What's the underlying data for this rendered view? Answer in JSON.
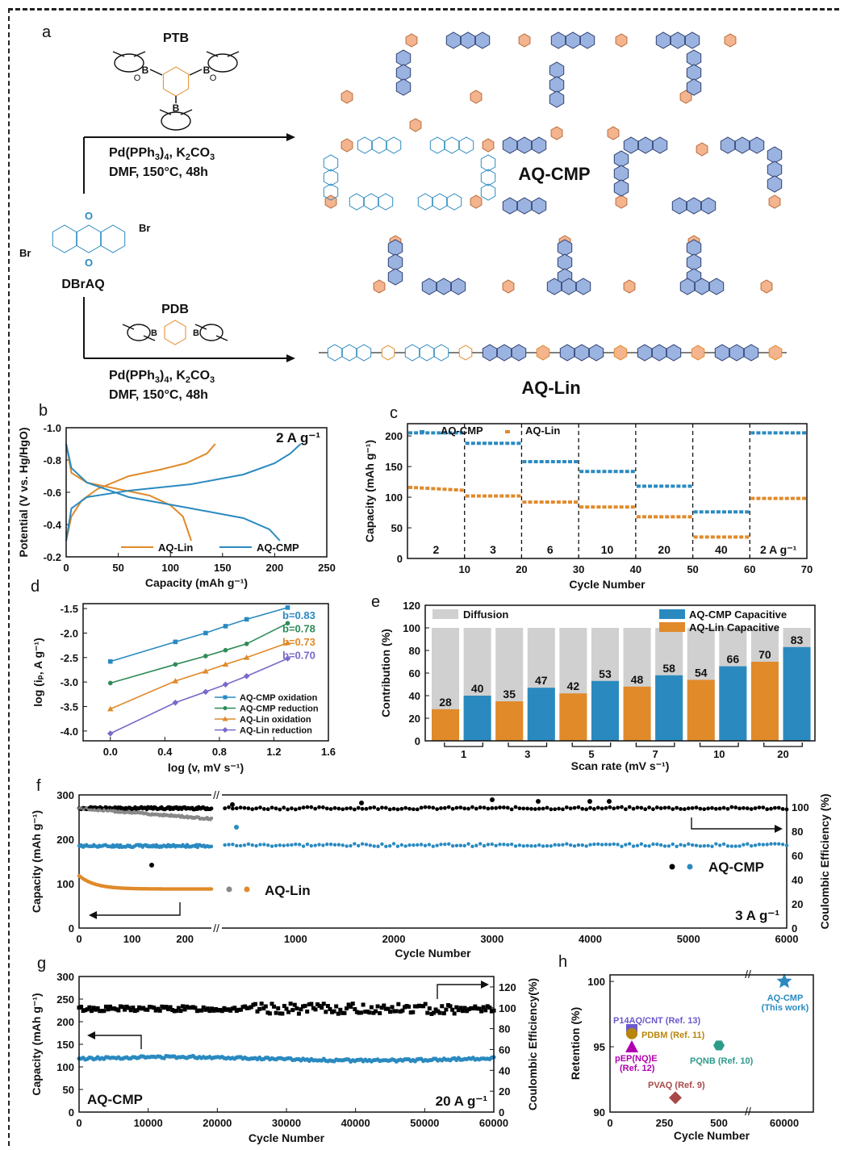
{
  "colors": {
    "cmp": "#2a8ac0",
    "lin": "#e08a2a",
    "green": "#2e8b57",
    "purple": "#7b68c8",
    "grey": "#888888",
    "black": "#000000",
    "hex": "#9bb3e0",
    "hex_dark": "#2c3e70",
    "phen": "#f3b48e",
    "diffusion": "#d0d0d0"
  },
  "panel_a": {
    "label": "a",
    "reagent_top": "PTB",
    "reagent_bottom": "PDB",
    "start": "DBrAQ",
    "br": "Br",
    "cond_top_1": "Pd(PPh",
    "cond_top_sub": "3",
    "cond_top_2": ")",
    "cond_top_sub2": "4",
    "cond_top_3": ", K",
    "cond_top_sub3": "2",
    "cond_top_4": "CO",
    "cond_top_sub4": "3",
    "cond_top_line2": "DMF, 150°C, 48h",
    "product_top": "AQ-CMP",
    "product_bottom": "AQ-Lin",
    "atom_B": "B",
    "atom_O": "O"
  },
  "panels": {
    "b": "b",
    "c": "c",
    "d": "d",
    "e": "e",
    "f": "f",
    "g": "g",
    "h": "h"
  },
  "chart_data": [
    {
      "panel": "b",
      "type": "line",
      "annotation": "2 A g⁻¹",
      "xlabel": "Capacity (mAh g⁻¹)",
      "ylabel": "Potential (V vs. Hg/HgO)",
      "xlim": [
        0,
        250
      ],
      "ylim": [
        -1.0,
        -0.2
      ],
      "xticks": [
        "0",
        "50",
        "100",
        "150",
        "200",
        "250"
      ],
      "yticks": [
        "-1.0",
        "-0.8",
        "-0.6",
        "-0.4",
        "-0.2"
      ],
      "series": [
        {
          "name": "AQ-Lin",
          "color": "#e08a2a",
          "charge": [
            [
              0,
              -0.3
            ],
            [
              5,
              -0.45
            ],
            [
              15,
              -0.55
            ],
            [
              30,
              -0.62
            ],
            [
              60,
              -0.7
            ],
            [
              90,
              -0.74
            ],
            [
              115,
              -0.78
            ],
            [
              135,
              -0.84
            ],
            [
              143,
              -0.9
            ]
          ],
          "discharge": [
            [
              0,
              -0.9
            ],
            [
              5,
              -0.72
            ],
            [
              20,
              -0.66
            ],
            [
              50,
              -0.62
            ],
            [
              80,
              -0.58
            ],
            [
              100,
              -0.52
            ],
            [
              112,
              -0.45
            ],
            [
              120,
              -0.3
            ]
          ]
        },
        {
          "name": "AQ-CMP",
          "color": "#2a8ac0",
          "charge": [
            [
              0,
              -0.3
            ],
            [
              5,
              -0.5
            ],
            [
              20,
              -0.57
            ],
            [
              60,
              -0.61
            ],
            [
              120,
              -0.65
            ],
            [
              170,
              -0.71
            ],
            [
              200,
              -0.78
            ],
            [
              215,
              -0.84
            ],
            [
              225,
              -0.9
            ]
          ],
          "discharge": [
            [
              0,
              -0.9
            ],
            [
              5,
              -0.75
            ],
            [
              20,
              -0.66
            ],
            [
              60,
              -0.57
            ],
            [
              120,
              -0.5
            ],
            [
              170,
              -0.44
            ],
            [
              195,
              -0.37
            ],
            [
              205,
              -0.3
            ]
          ]
        }
      ]
    },
    {
      "panel": "c",
      "type": "scatter",
      "xlabel": "Cycle Number",
      "ylabel": "Capacity (mAh g⁻¹)",
      "xlim": [
        0,
        70
      ],
      "ylim": [
        0,
        220
      ],
      "xticks": [
        "10",
        "20",
        "30",
        "40",
        "50",
        "60",
        "70"
      ],
      "yticks": [
        "0",
        "50",
        "100",
        "150",
        "200"
      ],
      "rates": [
        "2",
        "3",
        "6",
        "10",
        "20",
        "40",
        "2 A g⁻¹"
      ],
      "series": [
        {
          "name": "AQ-CMP",
          "color": "#2a8ac0",
          "segments": [
            205,
            188,
            158,
            142,
            118,
            76,
            205
          ]
        },
        {
          "name": "AQ-Lin",
          "color": "#e08a2a",
          "segments": [
            112,
            102,
            92,
            84,
            68,
            35,
            98
          ]
        }
      ]
    },
    {
      "panel": "d",
      "type": "line",
      "xlabel": "log (v, mV s⁻¹)",
      "ylabel": "log (iₚ, A g⁻¹)",
      "xlim": [
        -0.2,
        1.6
      ],
      "ylim": [
        -4.2,
        -1.4
      ],
      "xticks": [
        "0.0",
        "0.4",
        "0.8",
        "1.2",
        "1.6"
      ],
      "yticks": [
        "-1.5",
        "-2.0",
        "-2.5",
        "-3.0",
        "-3.5",
        "-4.0"
      ],
      "x": [
        0.0,
        0.477,
        0.699,
        0.845,
        1.0,
        1.301
      ],
      "series": [
        {
          "name": "AQ-CMP oxidation",
          "b": "b=0.83",
          "color": "#2a8ac0",
          "marker": "square",
          "y": [
            -2.58,
            -2.18,
            -2.0,
            -1.86,
            -1.72,
            -1.48
          ]
        },
        {
          "name": "AQ-CMP reduction",
          "b": "b=0.78",
          "color": "#2e8b57",
          "marker": "circle",
          "y": [
            -3.02,
            -2.64,
            -2.47,
            -2.35,
            -2.22,
            -1.8
          ]
        },
        {
          "name": "AQ-Lin oxidation",
          "b": "b=0.73",
          "color": "#e08a2a",
          "marker": "triangle",
          "y": [
            -3.55,
            -2.98,
            -2.78,
            -2.64,
            -2.5,
            -2.2
          ]
        },
        {
          "name": "AQ-Lin reduction",
          "b": "b=0.70",
          "color": "#7b68c8",
          "marker": "diamond",
          "y": [
            -4.05,
            -3.42,
            -3.2,
            -3.05,
            -2.88,
            -2.52
          ]
        }
      ]
    },
    {
      "panel": "e",
      "type": "bar",
      "xlabel": "Scan rate (mV s⁻¹)",
      "ylabel": "Contribution (%)",
      "ylim": [
        0,
        120
      ],
      "yticks": [
        "0",
        "20",
        "40",
        "60",
        "80",
        "100",
        "120"
      ],
      "categories": [
        "1",
        "3",
        "5",
        "7",
        "10",
        "20"
      ],
      "series": [
        {
          "name": "AQ-Lin Capacitive",
          "color": "#e08a2a",
          "values": [
            28,
            35,
            42,
            48,
            54,
            70
          ]
        },
        {
          "name": "AQ-CMP Capacitive",
          "color": "#2a8ac0",
          "values": [
            40,
            47,
            53,
            58,
            66,
            83
          ]
        },
        {
          "name": "Diffusion",
          "color": "#d0d0d0",
          "values": [
            100,
            100,
            100,
            100,
            100,
            100
          ]
        }
      ]
    },
    {
      "panel": "f",
      "type": "scatter",
      "annotation": "3 A g⁻¹",
      "xlabel": "Cycle Number",
      "ylabel": "Capacity (mAh g⁻¹)",
      "y2label": "Coulombic Efficiency (%)",
      "ylim": [
        0,
        300
      ],
      "y2lim": [
        0,
        110
      ],
      "xticks_left": [
        "0",
        "100",
        "200"
      ],
      "xticks_right": [
        "1000",
        "2000",
        "3000",
        "4000",
        "5000",
        "6000"
      ],
      "yticks": [
        "0",
        "100",
        "200",
        "300"
      ],
      "y2ticks": [
        "0",
        "20",
        "40",
        "60",
        "80",
        "100"
      ],
      "series": [
        {
          "name": "AQ-CMP",
          "color": "#2a8ac0",
          "capacity": 185
        },
        {
          "name": "AQ-Lin",
          "color": "#e08a2a",
          "capacity_start": 118,
          "capacity_end": 88
        }
      ]
    },
    {
      "panel": "g",
      "type": "scatter",
      "annotation": "20 A g⁻¹",
      "label": "AQ-CMP",
      "xlabel": "Cycle Number",
      "ylabel": "Capacity (mAh g⁻¹)",
      "y2label": "Coulombic Efficiency(%)",
      "xlim": [
        0,
        60000
      ],
      "ylim": [
        0,
        300
      ],
      "y2lim": [
        0,
        130
      ],
      "xticks": [
        "0",
        "10000",
        "20000",
        "30000",
        "40000",
        "50000",
        "60000"
      ],
      "yticks": [
        "0",
        "50",
        "100",
        "150",
        "200",
        "250",
        "300"
      ],
      "y2ticks": [
        "0",
        "20",
        "40",
        "60",
        "80",
        "100",
        "120"
      ],
      "series": [
        {
          "name": "AQ-CMP",
          "color": "#2a8ac0",
          "capacity": 118
        },
        {
          "name": "Coulombic efficiency",
          "color": "#000000",
          "value": 99
        }
      ]
    },
    {
      "panel": "h",
      "type": "scatter",
      "xlabel": "Cycle Number",
      "ylabel": "Retention (%)",
      "ylim": [
        90,
        100.5
      ],
      "yticks": [
        "90",
        "95",
        "100"
      ],
      "xticks": [
        "0",
        "250",
        "500",
        "60000"
      ],
      "points": [
        {
          "name": "AQ-CMP",
          "sub": "(This work)",
          "x": 60000,
          "y": 100,
          "color": "#2a8ac0",
          "marker": "star"
        },
        {
          "name": "P14AQ/CNT (Ref. 13)",
          "x": 100,
          "y": 96.3,
          "color": "#6a5acd",
          "marker": "square"
        },
        {
          "name": "PDBM (Ref. 11)",
          "x": 100,
          "y": 96.0,
          "color": "#b8860b",
          "marker": "circle"
        },
        {
          "name": "pEP(NQ)E",
          "sub": "(Ref. 12)",
          "x": 100,
          "y": 95.0,
          "color": "#b000b0",
          "marker": "triangle"
        },
        {
          "name": "PQNB (Ref. 10)",
          "x": 500,
          "y": 95.1,
          "color": "#2e9b8a",
          "marker": "hexagon"
        },
        {
          "name": "PVAQ (Ref. 9)",
          "x": 300,
          "y": 91.1,
          "color": "#a84848",
          "marker": "diamond"
        }
      ]
    }
  ]
}
